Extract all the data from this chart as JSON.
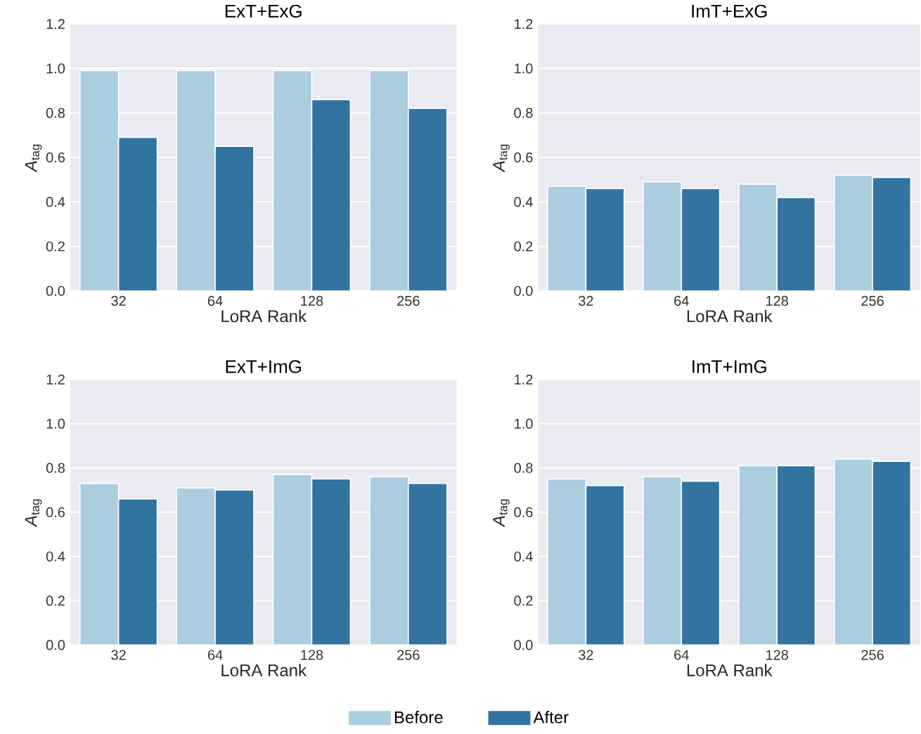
{
  "chart_data": [
    {
      "type": "bar",
      "title": "ExT+ExG",
      "xlabel": "LoRA Rank",
      "ylabel": "*A*$_{tag}$",
      "categories": [
        "32",
        "64",
        "128",
        "256"
      ],
      "ylim": [
        0,
        1.2
      ],
      "yticks": [
        {
          "value": 0,
          "label": "0.0"
        },
        {
          "value": 0.2,
          "label": "0.2"
        },
        {
          "value": 0.4,
          "label": "0.4"
        },
        {
          "value": 0.6,
          "label": "0.6"
        },
        {
          "value": 0.8,
          "label": "0.8"
        },
        {
          "value": 1.0,
          "label": "1.0"
        },
        {
          "value": 1.2,
          "label": "1.2"
        }
      ],
      "grid": "y",
      "series": [
        {
          "color": "#abcde0",
          "values": [
            0.99,
            0.99,
            0.99,
            0.99
          ]
        },
        {
          "color": "#3274a1",
          "values": [
            0.69,
            0.65,
            0.86,
            0.82
          ]
        }
      ]
    },
    {
      "type": "bar",
      "title": "ImT+ExG",
      "xlabel": "LoRA Rank",
      "ylabel": "*A*$_{tag}$",
      "categories": [
        "32",
        "64",
        "128",
        "256"
      ],
      "ylim": [
        0,
        1.2
      ],
      "yticks": [
        {
          "value": 0,
          "label": "0.0"
        },
        {
          "value": 0.2,
          "label": "0.2"
        },
        {
          "value": 0.4,
          "label": "0.4"
        },
        {
          "value": 0.6,
          "label": "0.6"
        },
        {
          "value": 0.8,
          "label": "0.8"
        },
        {
          "value": 1.0,
          "label": "1.0"
        },
        {
          "value": 1.2,
          "label": "1.2"
        }
      ],
      "grid": "y",
      "series": [
        {
          "color": "#abcde0",
          "values": [
            0.47,
            0.49,
            0.48,
            0.52
          ]
        },
        {
          "color": "#3274a1",
          "values": [
            0.46,
            0.46,
            0.42,
            0.51
          ]
        }
      ]
    },
    {
      "type": "bar",
      "title": "ExT+ImG",
      "xlabel": "LoRA Rank",
      "ylabel": "*A*$_{tag}$",
      "categories": [
        "32",
        "64",
        "128",
        "256"
      ],
      "ylim": [
        0,
        1.2
      ],
      "yticks": [
        {
          "value": 0,
          "label": "0.0"
        },
        {
          "value": 0.2,
          "label": "0.2"
        },
        {
          "value": 0.4,
          "label": "0.4"
        },
        {
          "value": 0.6,
          "label": "0.6"
        },
        {
          "value": 0.8,
          "label": "0.8"
        },
        {
          "value": 1.0,
          "label": "1.0"
        },
        {
          "value": 1.2,
          "label": "1.2"
        }
      ],
      "grid": "y",
      "series": [
        {
          "color": "#abcde0",
          "values": [
            0.73,
            0.71,
            0.77,
            0.76
          ]
        },
        {
          "color": "#3274a1",
          "values": [
            0.66,
            0.7,
            0.75,
            0.73
          ]
        }
      ]
    },
    {
      "type": "bar",
      "title": "ImT+ImG",
      "xlabel": "LoRA Rank",
      "ylabel": "*A*$_{tag}$",
      "categories": [
        "32",
        "64",
        "128",
        "256"
      ],
      "ylim": [
        0,
        1.2
      ],
      "yticks": [
        {
          "value": 0,
          "label": "0.0"
        },
        {
          "value": 0.2,
          "label": "0.2"
        },
        {
          "value": 0.4,
          "label": "0.4"
        },
        {
          "value": 0.6,
          "label": "0.6"
        },
        {
          "value": 0.8,
          "label": "0.8"
        },
        {
          "value": 1.0,
          "label": "1.0"
        },
        {
          "value": 1.2,
          "label": "1.2"
        }
      ],
      "grid": "y",
      "legend": "bottom",
      "series": [
        {
          "name": "Before",
          "color": "#abcde0",
          "values": [
            0.75,
            0.76,
            0.81,
            0.84
          ]
        },
        {
          "name": "After",
          "color": "#3274a1",
          "values": [
            0.72,
            0.74,
            0.81,
            0.83
          ]
        }
      ]
    }
  ]
}
